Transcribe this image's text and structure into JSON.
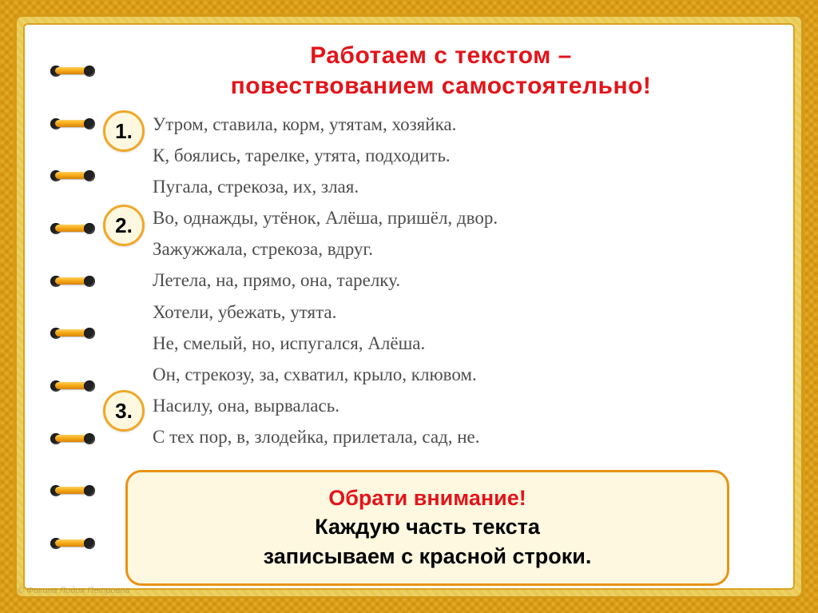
{
  "title_line1": "Работаем   с   текстом –",
  "title_line2": "повествованием   самостоятельно!",
  "badges": {
    "b1": "1.",
    "b2": "2.",
    "b3": "3."
  },
  "lines": {
    "l1": "Утром, ставила, корм, утятам, хозяйка.",
    "l2": "К, боялись, тарелке, утята, подходить.",
    "l3": "Пугала, стрекоза, их, злая.",
    "l4": "Во, однажды, утёнок, Алёша, пришёл, двор.",
    "l5": "Зажужжала, стрекоза, вдруг.",
    "l6": "Летела, на, прямо, она, тарелку.",
    "l7": "Хотели, убежать, утята.",
    "l8": "Не, смелый, но, испугался, Алёша.",
    "l9": "Он, стрекозу, за, схватил, крыло, клювом.",
    "l10": "Насилу, она, вырвалась.",
    "l11": "С тех пор, в, злодейка, прилетала, сад, не."
  },
  "note": {
    "attn": "Обрати   внимание!",
    "rest1": "Каждую   часть   текста",
    "rest2": "записываем   с   красной   строки."
  },
  "credit": "© Фокина Лидия Петровна",
  "colors": {
    "title": "#e3141a",
    "badge_border": "#f0a828",
    "badge_bg": "#fff8e0",
    "note_border": "#e99314",
    "body_text": "#4d4d4d"
  },
  "ring_count": 10
}
